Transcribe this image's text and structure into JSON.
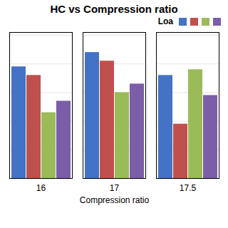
{
  "chart_data": {
    "type": "bar",
    "title": "HC vs Compression ratio",
    "xlabel": "Compression ratio",
    "legend_title": "Loa",
    "legend": "upper right",
    "categories": [
      "16",
      "17",
      "17.5"
    ],
    "series": [
      {
        "color": "#4472C4",
        "values": [
          0.78,
          0.88,
          0.72
        ]
      },
      {
        "color": "#C0504D",
        "values": [
          0.72,
          0.82,
          0.38
        ]
      },
      {
        "color": "#9BBB59",
        "values": [
          0.46,
          0.6,
          0.76
        ]
      },
      {
        "color": "#7B5EA7",
        "values": [
          0.54,
          0.66,
          0.58
        ]
      }
    ],
    "ylim": [
      0,
      1.02
    ],
    "yticks": [
      0,
      0.2,
      0.4,
      0.6,
      0.8,
      1
    ],
    "grid": true,
    "tick_labels": "x"
  }
}
